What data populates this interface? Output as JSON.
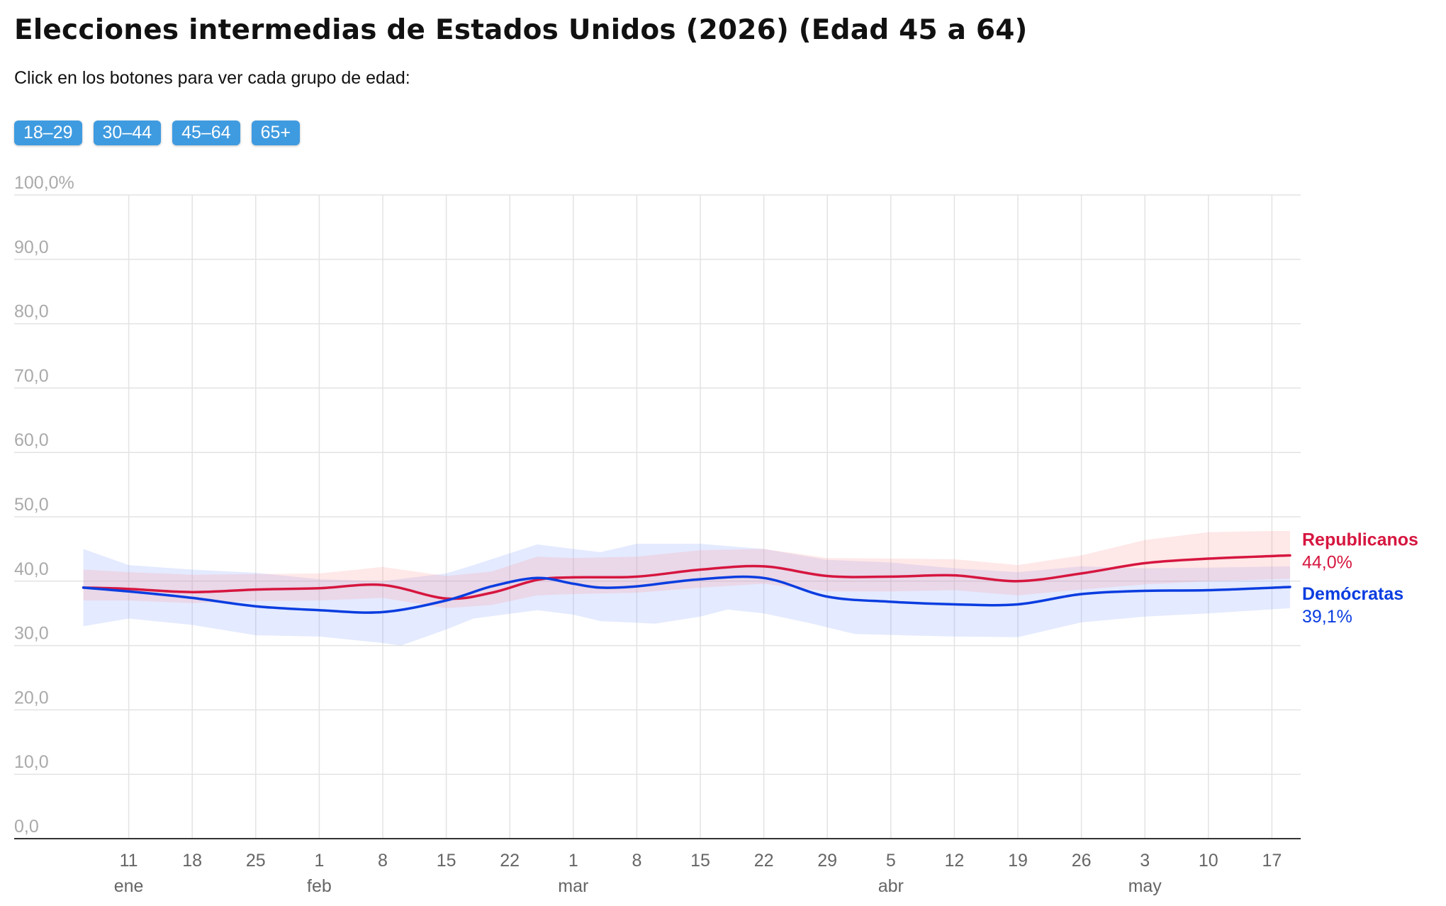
{
  "title": "Elecciones intermedias de Estados Unidos (2026) (Edad 45 a 64)",
  "subtitle": "Click en los botones para ver cada grupo de edad:",
  "buttons": [
    {
      "label": "18–29"
    },
    {
      "label": "30–44"
    },
    {
      "label": "45–64"
    },
    {
      "label": "65+"
    }
  ],
  "colors": {
    "republicans": "#d6163f",
    "democrats": "#0a3de0",
    "button": "#3f9be0",
    "grid": "#e3e3e3"
  },
  "chart_data": {
    "type": "line",
    "title": "Elecciones intermedias de Estados Unidos (2026) (Edad 45 a 64)",
    "ylim": [
      0,
      100
    ],
    "y_ticks": [
      "100,0%",
      "90,0",
      "80,0",
      "70,0",
      "60,0",
      "50,0",
      "40,0",
      "30,0",
      "20,0",
      "10,0",
      "0,0"
    ],
    "y_tick_values": [
      100,
      90,
      80,
      70,
      60,
      50,
      40,
      30,
      20,
      10,
      0
    ],
    "x_range": [
      "2026-01-04",
      "2026-05-19"
    ],
    "x_ticks": [
      {
        "date": "2026-01-11",
        "label": "11"
      },
      {
        "date": "2026-01-18",
        "label": "18"
      },
      {
        "date": "2026-01-25",
        "label": "25"
      },
      {
        "date": "2026-02-01",
        "label": "1"
      },
      {
        "date": "2026-02-08",
        "label": "8"
      },
      {
        "date": "2026-02-15",
        "label": "15"
      },
      {
        "date": "2026-02-22",
        "label": "22"
      },
      {
        "date": "2026-03-01",
        "label": "1"
      },
      {
        "date": "2026-03-08",
        "label": "8"
      },
      {
        "date": "2026-03-15",
        "label": "15"
      },
      {
        "date": "2026-03-22",
        "label": "22"
      },
      {
        "date": "2026-03-29",
        "label": "29"
      },
      {
        "date": "2026-04-05",
        "label": "5"
      },
      {
        "date": "2026-04-12",
        "label": "12"
      },
      {
        "date": "2026-04-19",
        "label": "19"
      },
      {
        "date": "2026-04-26",
        "label": "26"
      },
      {
        "date": "2026-05-03",
        "label": "3"
      },
      {
        "date": "2026-05-10",
        "label": "10"
      },
      {
        "date": "2026-05-17",
        "label": "17"
      }
    ],
    "month_labels": [
      {
        "date": "2026-01-11",
        "label": "ene"
      },
      {
        "date": "2026-02-01",
        "label": "feb"
      },
      {
        "date": "2026-03-01",
        "label": "mar"
      },
      {
        "date": "2026-04-05",
        "label": "abr"
      },
      {
        "date": "2026-05-03",
        "label": "may"
      }
    ],
    "grid": true,
    "series": [
      {
        "name": "Republicanos",
        "end_label": "44,0%",
        "color": "#d6163f",
        "points": [
          [
            "2026-01-06",
            39.0
          ],
          [
            "2026-01-11",
            38.8
          ],
          [
            "2026-01-18",
            38.3
          ],
          [
            "2026-01-25",
            38.7
          ],
          [
            "2026-02-01",
            38.9
          ],
          [
            "2026-02-08",
            39.4
          ],
          [
            "2026-02-15",
            37.3
          ],
          [
            "2026-02-20",
            38.2
          ],
          [
            "2026-02-25",
            40.2
          ],
          [
            "2026-03-01",
            40.6
          ],
          [
            "2026-03-08",
            40.7
          ],
          [
            "2026-03-15",
            41.8
          ],
          [
            "2026-03-22",
            42.3
          ],
          [
            "2026-03-29",
            40.8
          ],
          [
            "2026-04-05",
            40.7
          ],
          [
            "2026-04-12",
            40.9
          ],
          [
            "2026-04-19",
            40.0
          ],
          [
            "2026-04-26",
            41.2
          ],
          [
            "2026-05-03",
            42.8
          ],
          [
            "2026-05-10",
            43.5
          ],
          [
            "2026-05-17",
            43.9
          ],
          [
            "2026-05-19",
            44.0
          ]
        ],
        "lower": [
          [
            "2026-01-06",
            37.0
          ],
          [
            "2026-01-11",
            37.0
          ],
          [
            "2026-01-18",
            36.6
          ],
          [
            "2026-01-25",
            36.9
          ],
          [
            "2026-02-01",
            37.0
          ],
          [
            "2026-02-08",
            37.4
          ],
          [
            "2026-02-15",
            35.8
          ],
          [
            "2026-02-20",
            36.3
          ],
          [
            "2026-02-25",
            37.8
          ],
          [
            "2026-03-01",
            38.0
          ],
          [
            "2026-03-08",
            38.2
          ],
          [
            "2026-03-15",
            39.0
          ],
          [
            "2026-03-22",
            39.6
          ],
          [
            "2026-03-29",
            38.4
          ],
          [
            "2026-04-05",
            38.4
          ],
          [
            "2026-04-12",
            38.6
          ],
          [
            "2026-04-19",
            37.8
          ],
          [
            "2026-04-26",
            38.7
          ],
          [
            "2026-05-03",
            39.5
          ],
          [
            "2026-05-10",
            40.0
          ],
          [
            "2026-05-17",
            40.3
          ],
          [
            "2026-05-19",
            40.4
          ]
        ],
        "upper": [
          [
            "2026-01-06",
            41.8
          ],
          [
            "2026-01-11",
            41.4
          ],
          [
            "2026-01-18",
            41.0
          ],
          [
            "2026-01-25",
            41.1
          ],
          [
            "2026-02-01",
            41.2
          ],
          [
            "2026-02-08",
            42.2
          ],
          [
            "2026-02-15",
            40.8
          ],
          [
            "2026-02-20",
            41.5
          ],
          [
            "2026-02-25",
            43.8
          ],
          [
            "2026-03-01",
            43.6
          ],
          [
            "2026-03-08",
            43.8
          ],
          [
            "2026-03-15",
            44.8
          ],
          [
            "2026-03-22",
            45.0
          ],
          [
            "2026-03-29",
            43.6
          ],
          [
            "2026-04-05",
            43.5
          ],
          [
            "2026-04-12",
            43.4
          ],
          [
            "2026-04-19",
            42.5
          ],
          [
            "2026-04-26",
            44.0
          ],
          [
            "2026-05-03",
            46.4
          ],
          [
            "2026-05-10",
            47.6
          ],
          [
            "2026-05-17",
            47.8
          ],
          [
            "2026-05-19",
            47.8
          ]
        ]
      },
      {
        "name": "Demócratas",
        "end_label": "39,1%",
        "color": "#0a3de0",
        "points": [
          [
            "2026-01-06",
            39.0
          ],
          [
            "2026-01-11",
            38.4
          ],
          [
            "2026-01-18",
            37.4
          ],
          [
            "2026-01-25",
            36.1
          ],
          [
            "2026-02-01",
            35.5
          ],
          [
            "2026-02-08",
            35.2
          ],
          [
            "2026-02-15",
            37.0
          ],
          [
            "2026-02-20",
            39.2
          ],
          [
            "2026-02-25",
            40.5
          ],
          [
            "2026-03-01",
            39.6
          ],
          [
            "2026-03-04",
            39.0
          ],
          [
            "2026-03-08",
            39.2
          ],
          [
            "2026-03-15",
            40.3
          ],
          [
            "2026-03-22",
            40.5
          ],
          [
            "2026-03-29",
            37.6
          ],
          [
            "2026-04-05",
            36.8
          ],
          [
            "2026-04-12",
            36.4
          ],
          [
            "2026-04-19",
            36.4
          ],
          [
            "2026-04-26",
            38.0
          ],
          [
            "2026-05-03",
            38.5
          ],
          [
            "2026-05-10",
            38.6
          ],
          [
            "2026-05-19",
            39.1
          ]
        ],
        "lower": [
          [
            "2026-01-06",
            33.0
          ],
          [
            "2026-01-11",
            34.2
          ],
          [
            "2026-01-18",
            33.2
          ],
          [
            "2026-01-25",
            31.6
          ],
          [
            "2026-02-01",
            31.4
          ],
          [
            "2026-02-08",
            30.4
          ],
          [
            "2026-02-10",
            30.0
          ],
          [
            "2026-02-15",
            32.5
          ],
          [
            "2026-02-18",
            34.2
          ],
          [
            "2026-02-25",
            35.5
          ],
          [
            "2026-03-01",
            34.8
          ],
          [
            "2026-03-04",
            33.8
          ],
          [
            "2026-03-10",
            33.4
          ],
          [
            "2026-03-15",
            34.5
          ],
          [
            "2026-03-18",
            35.6
          ],
          [
            "2026-03-22",
            35.0
          ],
          [
            "2026-03-27",
            33.5
          ],
          [
            "2026-04-01",
            31.8
          ],
          [
            "2026-04-12",
            31.4
          ],
          [
            "2026-04-19",
            31.3
          ],
          [
            "2026-04-26",
            33.6
          ],
          [
            "2026-05-03",
            34.5
          ],
          [
            "2026-05-10",
            35.0
          ],
          [
            "2026-05-19",
            35.8
          ]
        ],
        "upper": [
          [
            "2026-01-06",
            45.0
          ],
          [
            "2026-01-11",
            42.5
          ],
          [
            "2026-01-18",
            41.8
          ],
          [
            "2026-01-25",
            41.3
          ],
          [
            "2026-02-01",
            40.3
          ],
          [
            "2026-02-08",
            40.0
          ],
          [
            "2026-02-15",
            41.2
          ],
          [
            "2026-02-18",
            42.5
          ],
          [
            "2026-02-25",
            45.7
          ],
          [
            "2026-03-01",
            45.0
          ],
          [
            "2026-03-04",
            44.5
          ],
          [
            "2026-03-08",
            45.8
          ],
          [
            "2026-03-15",
            45.8
          ],
          [
            "2026-03-22",
            45.0
          ],
          [
            "2026-03-29",
            43.3
          ],
          [
            "2026-04-05",
            42.9
          ],
          [
            "2026-04-12",
            42.0
          ],
          [
            "2026-04-19",
            41.4
          ],
          [
            "2026-04-26",
            42.3
          ],
          [
            "2026-05-03",
            42.0
          ],
          [
            "2026-05-10",
            42.1
          ],
          [
            "2026-05-19",
            42.3
          ]
        ]
      }
    ]
  }
}
